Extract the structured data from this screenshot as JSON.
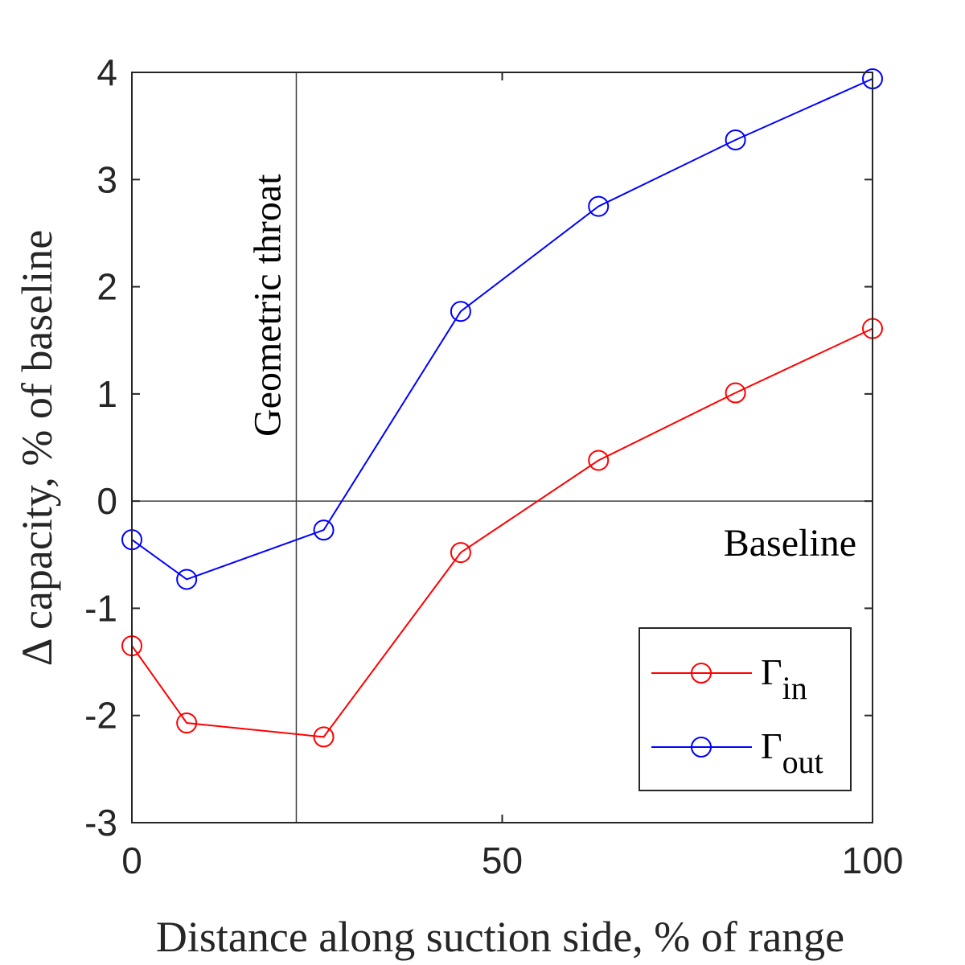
{
  "chart_data": {
    "type": "line",
    "title": "",
    "xlabel": "Distance along suction side, % of range",
    "ylabel": "Δ capacity, % of baseline",
    "xlim": [
      0,
      100
    ],
    "ylim": [
      -3,
      4
    ],
    "xticks": [
      0,
      50,
      100
    ],
    "yticks": [
      -3,
      -2,
      -1,
      0,
      1,
      2,
      3,
      4
    ],
    "grid": false,
    "reference_lines": [
      {
        "orientation": "vertical",
        "value": 22.2,
        "label": "Geometric throat"
      },
      {
        "orientation": "horizontal",
        "value": 0,
        "label": "Baseline"
      }
    ],
    "legend_position": "bottom-right",
    "series": [
      {
        "name": "Γin",
        "name_main": "Γ",
        "name_sub": "in",
        "color": "#ff0000",
        "marker": "circle-open",
        "x": [
          0,
          7.4,
          25.9,
          44.4,
          63.0,
          81.5,
          100
        ],
        "y": [
          -1.35,
          -2.07,
          -2.2,
          -0.48,
          0.38,
          1.01,
          1.61
        ]
      },
      {
        "name": "Γout",
        "name_main": "Γ",
        "name_sub": "out",
        "color": "#0000ff",
        "marker": "circle-open",
        "x": [
          0,
          7.4,
          25.9,
          44.4,
          63.0,
          81.5,
          100
        ],
        "y": [
          -0.36,
          -0.73,
          -0.27,
          1.77,
          2.75,
          3.37,
          3.94
        ]
      }
    ]
  }
}
